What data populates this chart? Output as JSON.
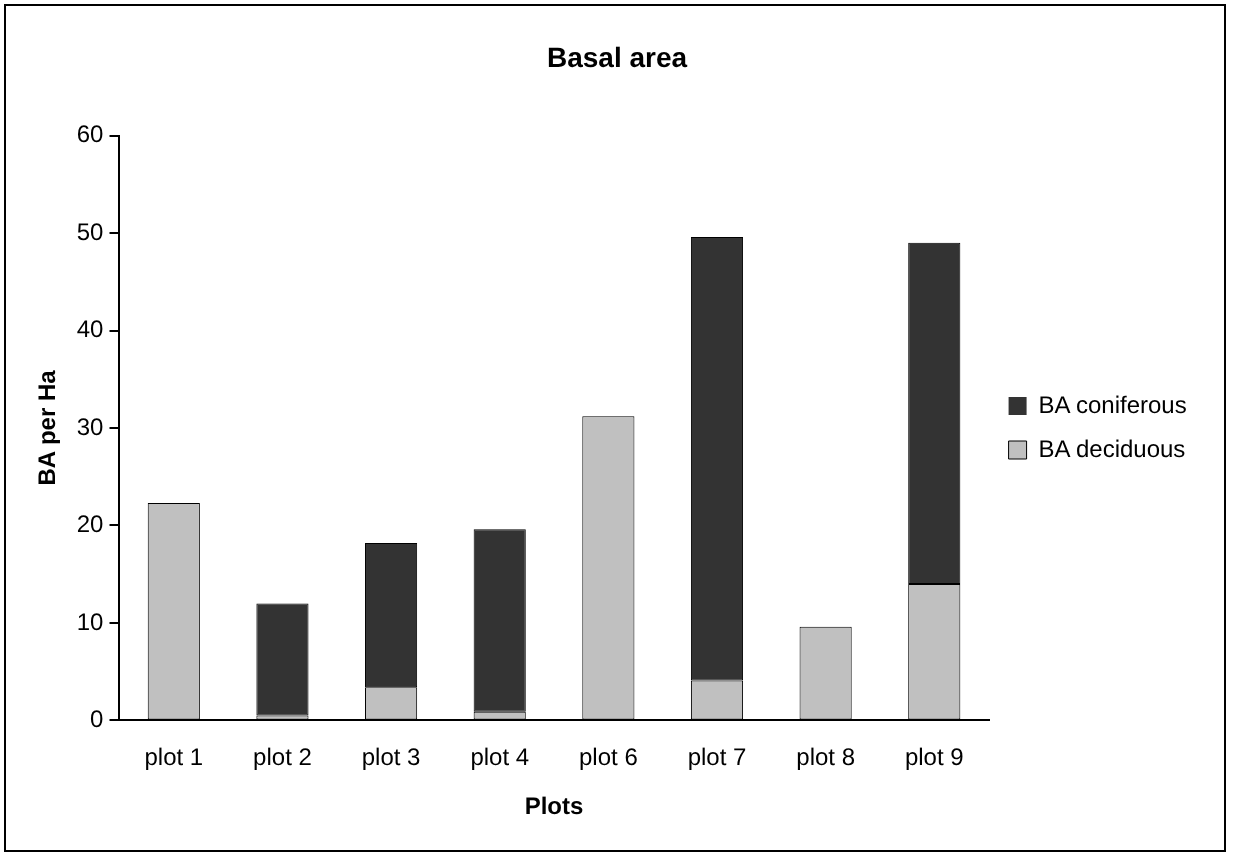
{
  "chart_data": {
    "type": "bar",
    "title": "Basal area",
    "xlabel": "Plots",
    "ylabel": "BA per Ha",
    "categories": [
      "plot 1",
      "plot 2",
      "plot 3",
      "plot 4",
      "plot 6",
      "plot 7",
      "plot 8",
      "plot 9"
    ],
    "stacked": true,
    "series": [
      {
        "name": "BA deciduous",
        "color": "#c0c0c0",
        "values": [
          22.3,
          0.5,
          3.4,
          0.9,
          31.2,
          4.1,
          9.6,
          14
        ]
      },
      {
        "name": "BA coniferous",
        "color": "#333333",
        "values": [
          0,
          11.5,
          14.8,
          18.7,
          0,
          45.5,
          0,
          35
        ]
      }
    ],
    "ylim": [
      0,
      60
    ],
    "yticks": [
      0,
      10,
      20,
      30,
      40,
      50,
      60
    ],
    "grid": false,
    "legend": "right"
  }
}
